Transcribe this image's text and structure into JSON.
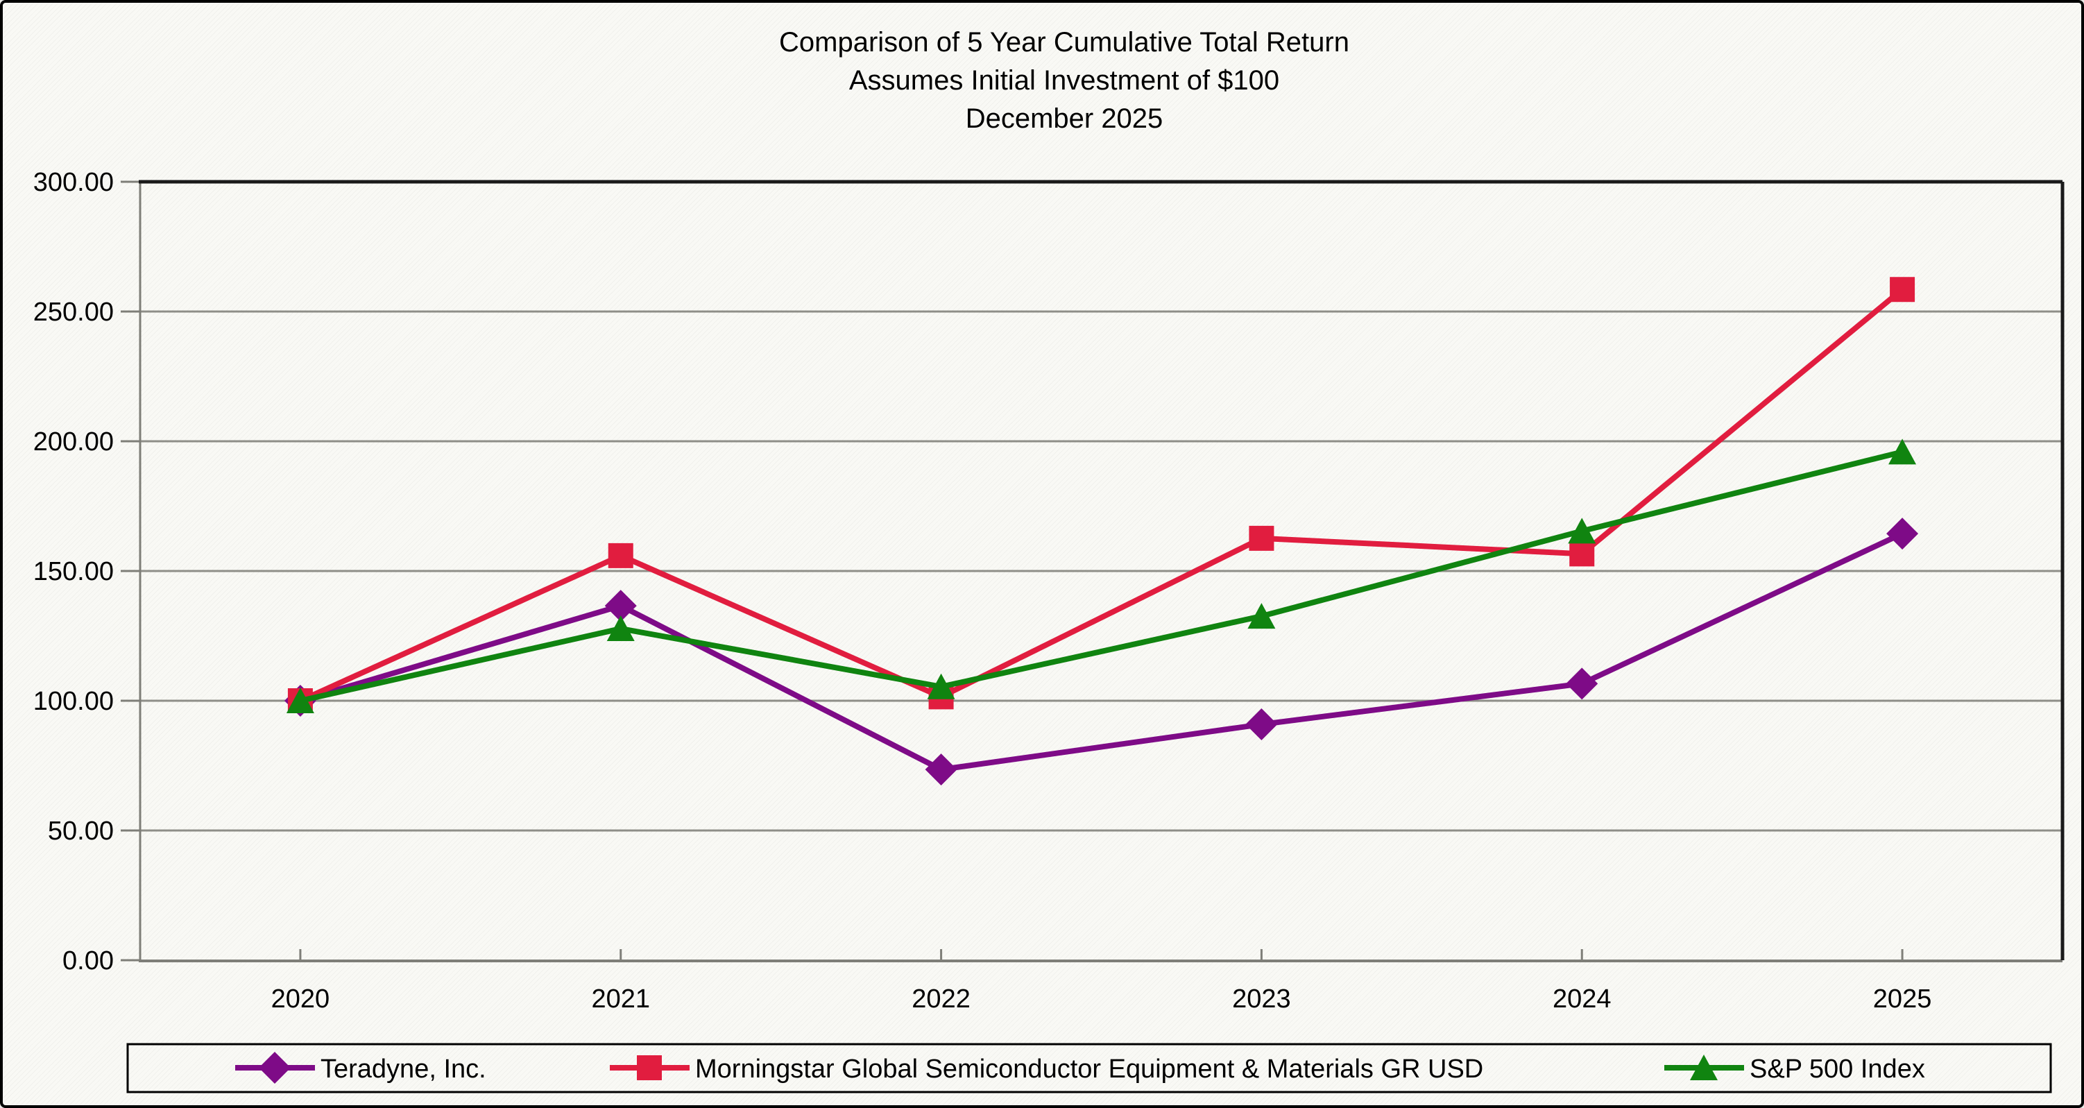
{
  "title": {
    "line1": "Comparison of 5 Year Cumulative Total Return",
    "line2": "Assumes Initial Investment of $100",
    "line3": "December 2025"
  },
  "chart_data": {
    "type": "line",
    "categories": [
      "2020",
      "2021",
      "2022",
      "2023",
      "2024",
      "2025"
    ],
    "series": [
      {
        "name": "Teradyne, Inc.",
        "values": [
          100.0,
          136.6,
          73.5,
          90.9,
          106.6,
          164.4
        ],
        "color": "#7E0B87",
        "marker": "diamond"
      },
      {
        "name": "Morningstar Global Semiconductor Equipment & Materials GR USD",
        "values": [
          100.0,
          155.9,
          101.5,
          162.6,
          156.6,
          258.5
        ],
        "color": "#E11D3F",
        "marker": "square"
      },
      {
        "name": "S&P 500 Index",
        "values": [
          100.0,
          127.8,
          105.4,
          132.6,
          165.4,
          195.9
        ],
        "color": "#108410",
        "marker": "triangle"
      }
    ],
    "ylim": [
      0,
      300
    ],
    "yticks": [
      {
        "v": 0,
        "label": "0.00"
      },
      {
        "v": 50,
        "label": "50.00"
      },
      {
        "v": 100,
        "label": "100.00"
      },
      {
        "v": 150,
        "label": "150.00"
      },
      {
        "v": 200,
        "label": "200.00"
      },
      {
        "v": 250,
        "label": "250.00"
      },
      {
        "v": 300,
        "label": "300.00"
      }
    ],
    "grid": true,
    "legend_position": "bottom"
  },
  "colors": {
    "grid": "#8E8E88",
    "axis": "#7E7E78",
    "plot_border": "#1A1A1A",
    "legend_border": "#000000",
    "text": "#000000"
  }
}
